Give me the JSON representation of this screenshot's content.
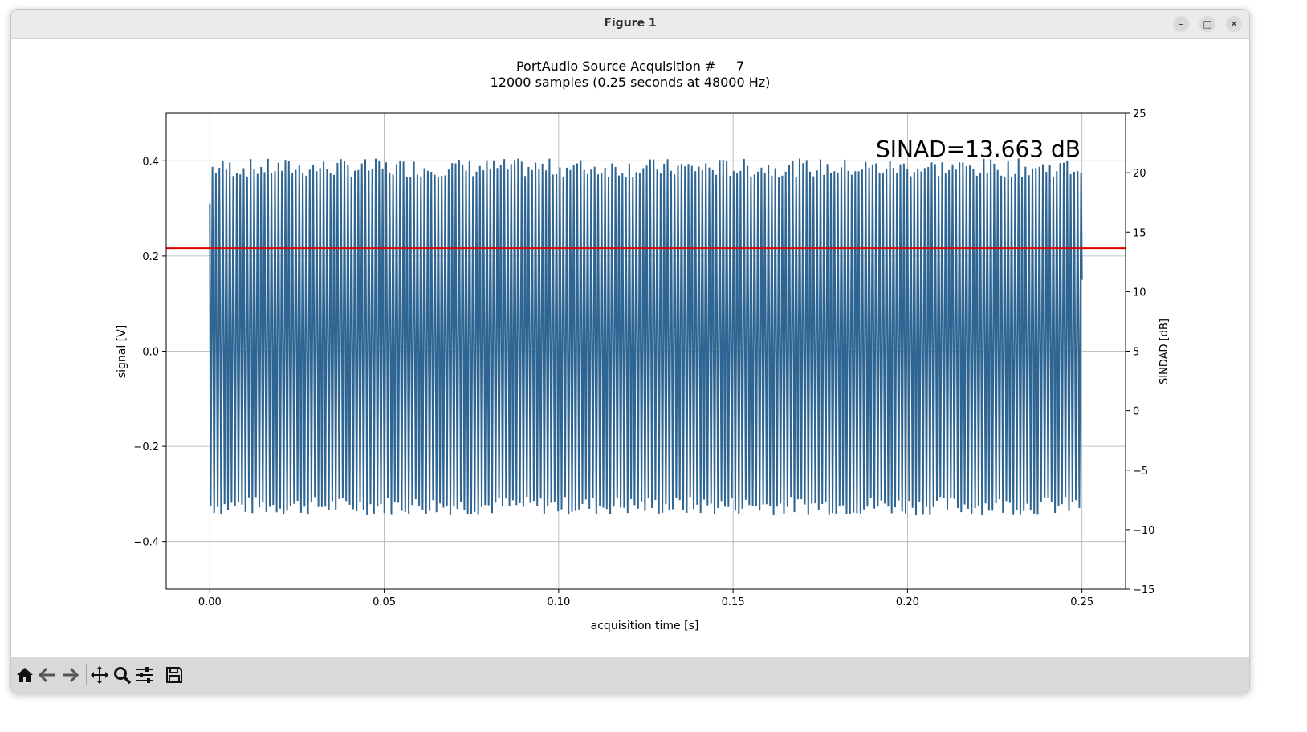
{
  "window": {
    "title": "Figure 1",
    "controls": {
      "minimize": "–",
      "maximize": "□",
      "close": "✕"
    }
  },
  "toolbar": {
    "buttons": [
      {
        "name": "home-button",
        "icon": "home-icon"
      },
      {
        "name": "back-button",
        "icon": "arrow-left-icon"
      },
      {
        "name": "forward-button",
        "icon": "arrow-right-icon"
      },
      {
        "name": "pan-button",
        "icon": "move-icon"
      },
      {
        "name": "zoom-button",
        "icon": "magnifier-icon"
      },
      {
        "name": "configure-subplots-button",
        "icon": "sliders-icon"
      },
      {
        "name": "save-button",
        "icon": "floppy-icon"
      }
    ]
  },
  "chart_data": {
    "type": "line",
    "title": "PortAudio Source Acquisition #     7",
    "subtitle": "12000 samples (0.25 seconds at 48000 Hz)",
    "xlabel": "acquisition time [s]",
    "ylabel": "signal [V]",
    "y2label": "SINDAD [dB]",
    "xlim": [
      -0.0125,
      0.2625
    ],
    "ylim": [
      -0.5,
      0.5
    ],
    "y2lim": [
      -15,
      25
    ],
    "xticks": [
      0.0,
      0.05,
      0.1,
      0.15,
      0.2,
      0.25
    ],
    "xtick_labels": [
      "0.00",
      "0.05",
      "0.10",
      "0.15",
      "0.20",
      "0.25"
    ],
    "yticks": [
      0.4,
      0.2,
      0.0,
      -0.2,
      -0.4
    ],
    "ytick_labels": [
      "0.4",
      "0.2",
      "0.0",
      "−0.2",
      "−0.4"
    ],
    "y2ticks": [
      25,
      20,
      15,
      10,
      5,
      0,
      -5,
      -10,
      -15
    ],
    "y2tick_labels": [
      "25",
      "20",
      "15",
      "10",
      "5",
      "0",
      "−5",
      "−10",
      "−15"
    ],
    "grid": true,
    "annotation": "SINAD=13.663 dB",
    "sinad_db": 13.663,
    "series": [
      {
        "color": "#2e6592",
        "duration_s": 0.25,
        "cycles": 251,
        "peak_high_v": 0.385,
        "peak_low_v": -0.325,
        "start_v": 0.31,
        "end_v": 0.15
      }
    ],
    "sinad_line_color": "#dd0000"
  },
  "colors": {
    "titlebar": "#ebebeb",
    "toolbar": "#d9d9d9",
    "grid": "#b0b0b0",
    "axis": "#000000"
  }
}
